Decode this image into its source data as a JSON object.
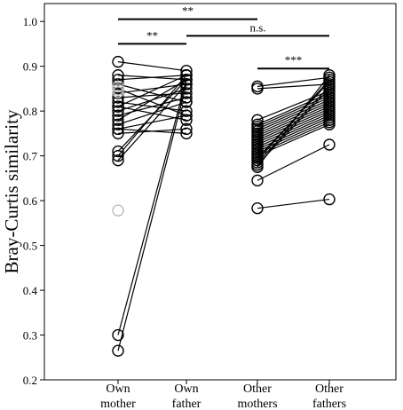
{
  "chart_data": {
    "type": "scatter",
    "subtype": "paired-dot-plot",
    "title": "",
    "xlabel": "",
    "ylabel": "Bray-Curtis similarity",
    "ylim": [
      0.2,
      1.04
    ],
    "yticks": [
      0.2,
      0.3,
      0.4,
      0.5,
      0.6,
      0.7,
      0.8,
      0.9,
      1.0
    ],
    "ytick_labels": [
      "0.2",
      "0.3",
      "0.4",
      "0.5",
      "0.6",
      "0.7",
      "0.8",
      "0.9",
      "1.0"
    ],
    "categories": [
      {
        "line1": "Own",
        "line2": "mother"
      },
      {
        "line1": "Own",
        "line2": "father"
      },
      {
        "line1": "Other",
        "line2": "mothers"
      },
      {
        "line1": "Other",
        "line2": "fathers"
      }
    ],
    "grid": false,
    "legend": "none",
    "colors": {
      "marker": "#000000",
      "highlight": "#bbbbbb"
    },
    "pairs_own": [
      [
        0.91,
        0.89
      ],
      [
        0.88,
        0.87
      ],
      [
        0.87,
        0.88
      ],
      [
        0.86,
        0.82
      ],
      [
        0.85,
        0.79
      ],
      [
        0.84,
        0.86
      ],
      [
        0.83,
        0.84
      ],
      [
        0.82,
        0.8
      ],
      [
        0.81,
        0.88
      ],
      [
        0.81,
        0.78
      ],
      [
        0.8,
        0.85
      ],
      [
        0.79,
        0.83
      ],
      [
        0.78,
        0.87
      ],
      [
        0.77,
        0.82
      ],
      [
        0.76,
        0.79
      ],
      [
        0.76,
        0.75
      ],
      [
        0.75,
        0.76
      ],
      [
        0.71,
        0.87
      ],
      [
        0.7,
        0.88
      ],
      [
        0.69,
        0.86
      ],
      [
        0.3,
        0.87
      ],
      [
        0.265,
        0.86
      ]
    ],
    "pairs_other": [
      [
        0.855,
        0.875
      ],
      [
        0.85,
        0.86
      ],
      [
        0.78,
        0.845
      ],
      [
        0.77,
        0.84
      ],
      [
        0.765,
        0.835
      ],
      [
        0.76,
        0.83
      ],
      [
        0.755,
        0.825
      ],
      [
        0.75,
        0.82
      ],
      [
        0.745,
        0.815
      ],
      [
        0.74,
        0.81
      ],
      [
        0.735,
        0.805
      ],
      [
        0.73,
        0.8
      ],
      [
        0.725,
        0.795
      ],
      [
        0.72,
        0.79
      ],
      [
        0.715,
        0.785
      ],
      [
        0.71,
        0.78
      ],
      [
        0.705,
        0.775
      ],
      [
        0.7,
        0.77
      ],
      [
        0.695,
        0.865
      ],
      [
        0.69,
        0.87
      ],
      [
        0.685,
        0.855
      ],
      [
        0.68,
        0.85
      ],
      [
        0.675,
        0.88
      ],
      [
        0.645,
        0.725
      ],
      [
        0.583,
        0.603
      ]
    ],
    "highlighted_own_mother": [
      0.855,
      0.848,
      0.842,
      0.578
    ],
    "significance": [
      {
        "from": 1,
        "to": 3,
        "y": 1.005,
        "label": "**"
      },
      {
        "from": 1,
        "to": 2,
        "y": 0.95,
        "label": "**"
      },
      {
        "from": 2,
        "to": 4,
        "y": 0.968,
        "label": "n.s."
      },
      {
        "from": 3,
        "to": 4,
        "y": 0.895,
        "label": "***"
      }
    ]
  }
}
